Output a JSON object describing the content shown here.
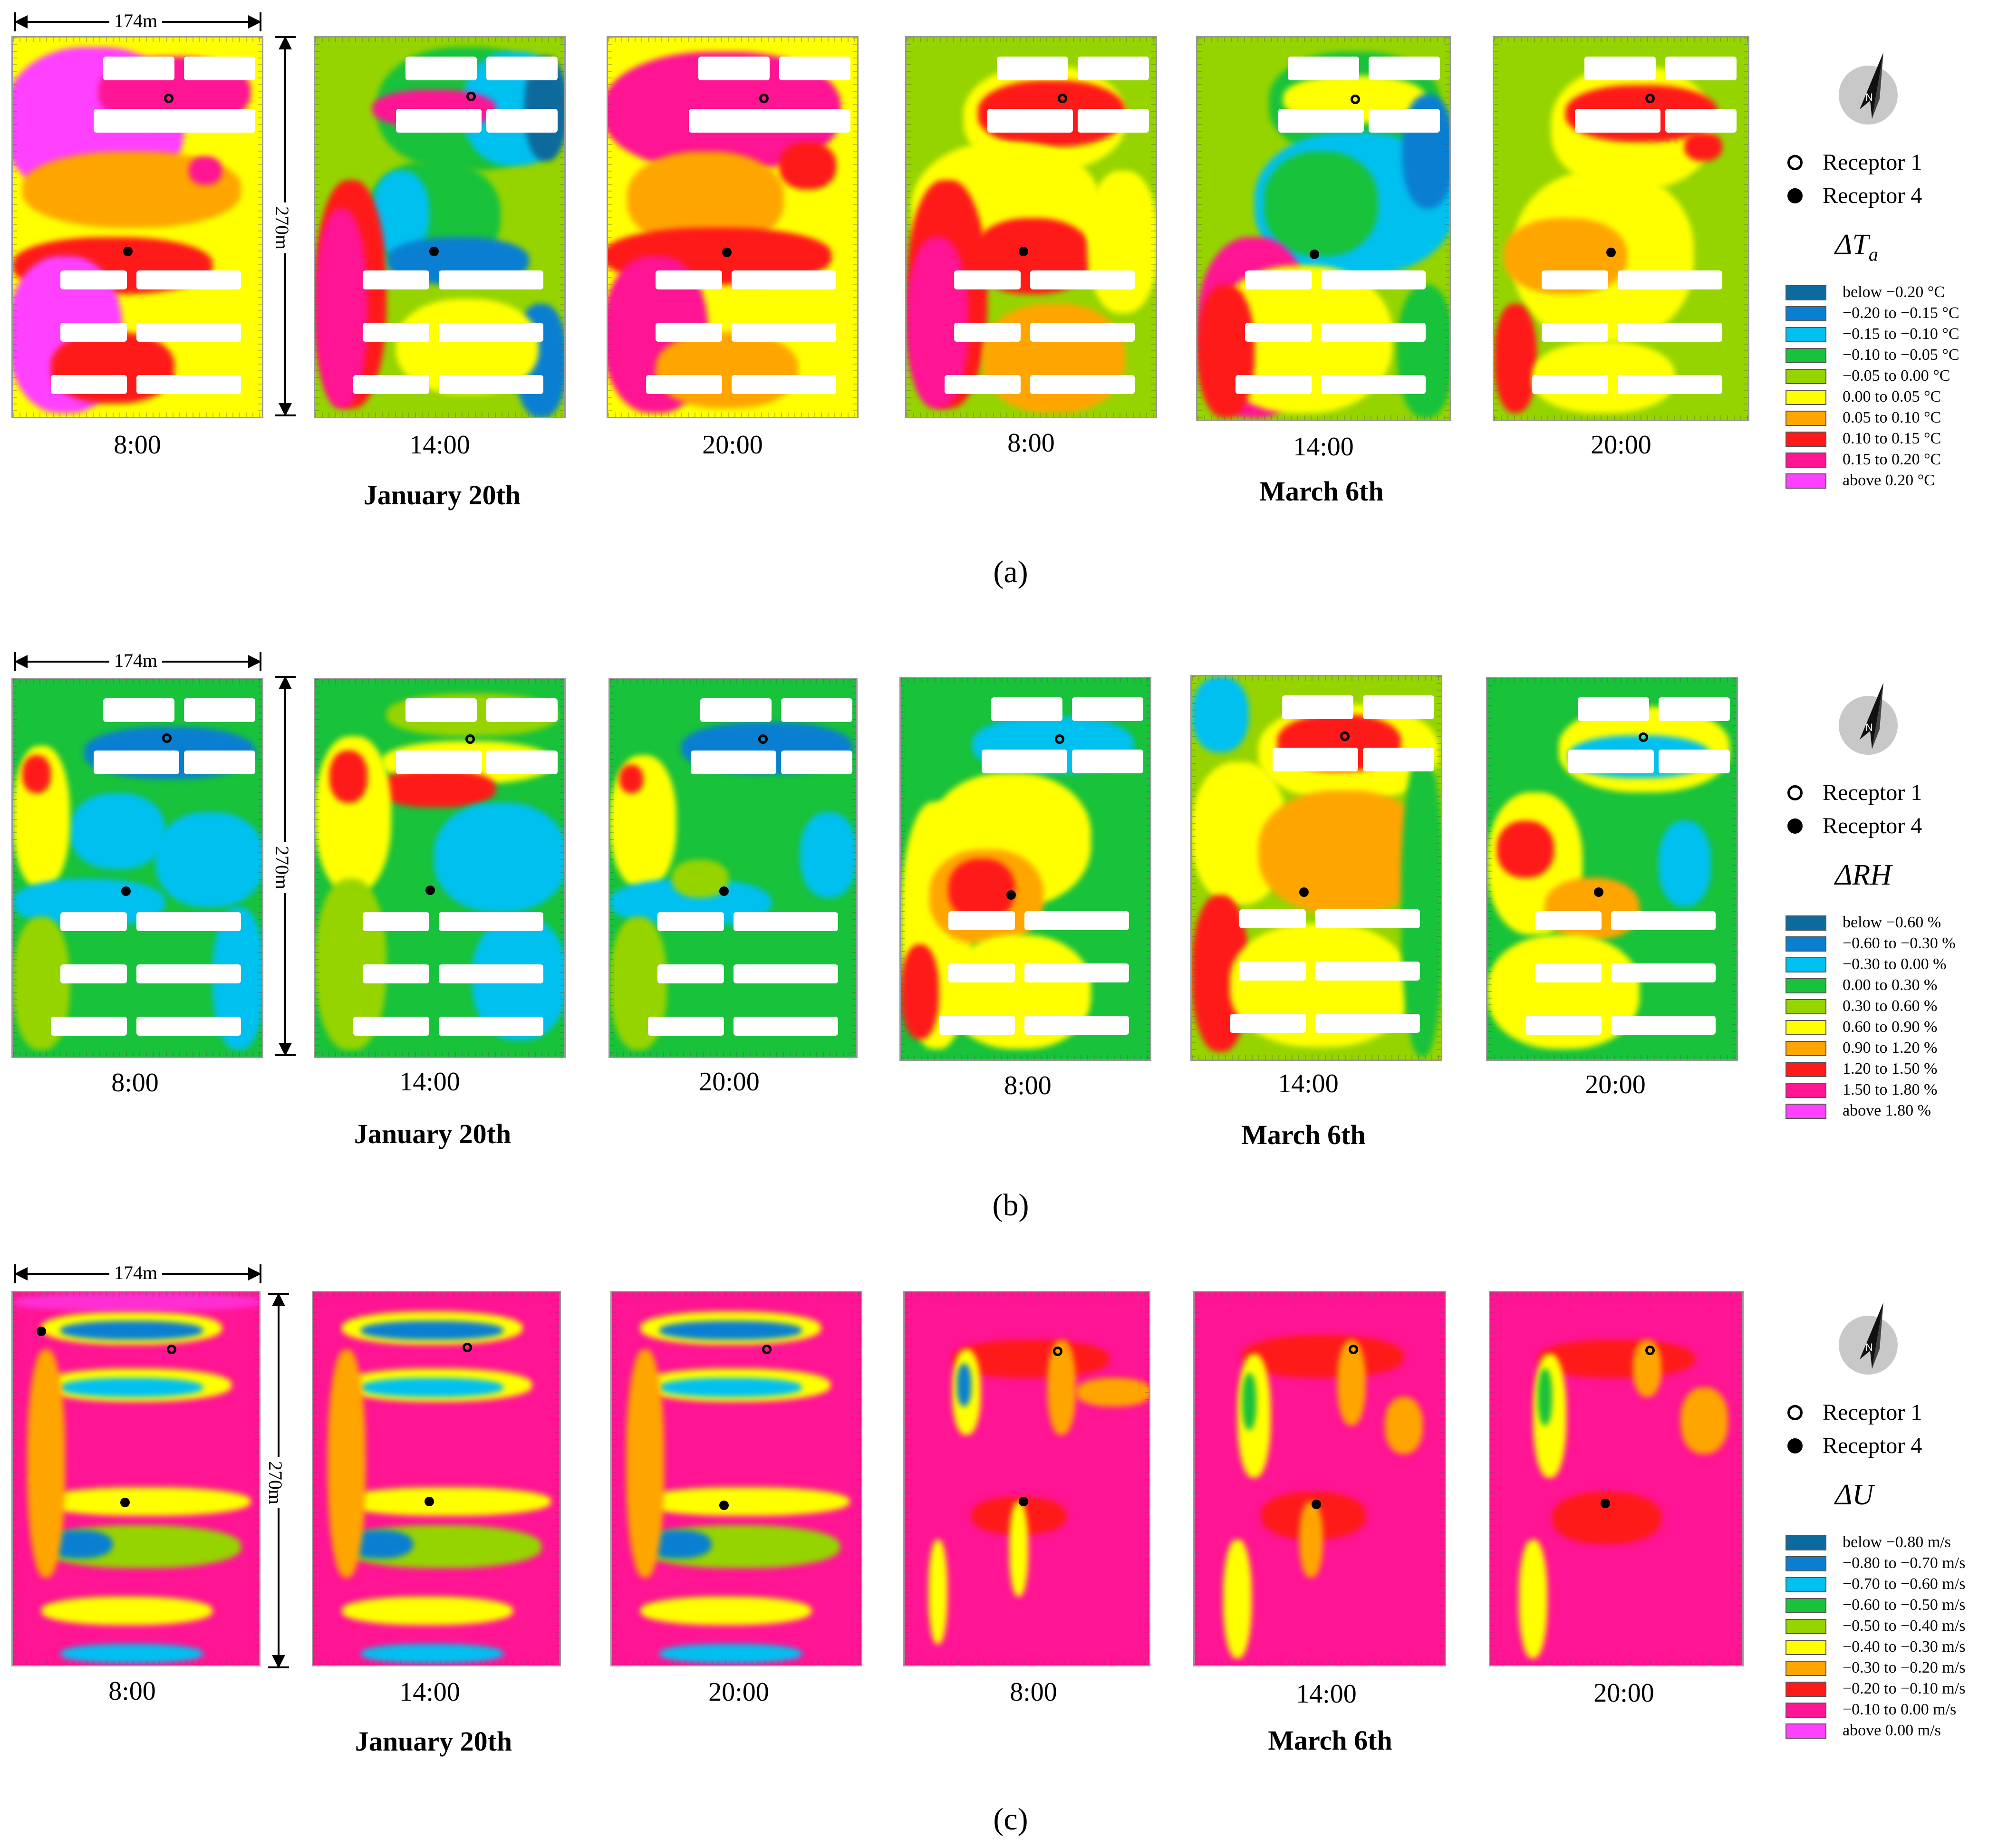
{
  "rows": [
    {
      "id": "a",
      "caption": "(a)",
      "dates": [
        "January 20th",
        "March 6th"
      ],
      "times": [
        "8:00",
        "14:00",
        "20:00",
        "8:00",
        "14:00",
        "20:00"
      ],
      "scale": {
        "width_label": "174m",
        "height_label": "270m"
      },
      "legend": {
        "title": "ΔT",
        "title_sub": "a",
        "receptors": [
          "Receptor 1",
          "Receptor 4"
        ],
        "items": [
          {
            "label": "below −0.20 °C",
            "color": "#0d6a9c"
          },
          {
            "label": "−0.20 to −0.15 °C",
            "color": "#0a7fd1"
          },
          {
            "label": "−0.15 to −0.10 °C",
            "color": "#00c0f0"
          },
          {
            "label": "−0.10 to −0.05 °C",
            "color": "#18c23a"
          },
          {
            "label": "−0.05 to 0.00 °C",
            "color": "#96d400"
          },
          {
            "label": "0.00 to 0.05 °C",
            "color": "#ffff00"
          },
          {
            "label": "0.05 to 0.10 °C",
            "color": "#ffa500"
          },
          {
            "label": "0.10 to 0.15 °C",
            "color": "#ff1a1a"
          },
          {
            "label": "0.15 to 0.20 °C",
            "color": "#ff1493"
          },
          {
            "label": "above 0.20 °C",
            "color": "#ff40ff"
          }
        ]
      }
    },
    {
      "id": "b",
      "caption": "(b)",
      "dates": [
        "January 20th",
        "March 6th"
      ],
      "times": [
        "8:00",
        "14:00",
        "20:00",
        "8:00",
        "14:00",
        "20:00"
      ],
      "scale": {
        "width_label": "174m",
        "height_label": "270m"
      },
      "legend": {
        "title": "ΔRH",
        "title_sub": "",
        "receptors": [
          "Receptor 1",
          "Receptor 4"
        ],
        "items": [
          {
            "label": "below −0.60 %",
            "color": "#0d6a9c"
          },
          {
            "label": "−0.60 to −0.30 %",
            "color": "#0a7fd1"
          },
          {
            "label": "−0.30 to 0.00 %",
            "color": "#00c0f0"
          },
          {
            "label": "0.00 to 0.30 %",
            "color": "#18c23a"
          },
          {
            "label": "0.30 to 0.60 %",
            "color": "#96d400"
          },
          {
            "label": "0.60 to 0.90 %",
            "color": "#ffff00"
          },
          {
            "label": "0.90 to 1.20 %",
            "color": "#ffa500"
          },
          {
            "label": "1.20 to 1.50 %",
            "color": "#ff1a1a"
          },
          {
            "label": "1.50 to 1.80 %",
            "color": "#ff1493"
          },
          {
            "label": "above 1.80 %",
            "color": "#ff40ff"
          }
        ]
      }
    },
    {
      "id": "c",
      "caption": "(c)",
      "dates": [
        "January 20th",
        "March 6th"
      ],
      "times": [
        "8:00",
        "14:00",
        "20:00",
        "8:00",
        "14:00",
        "20:00"
      ],
      "scale": {
        "width_label": "174m",
        "height_label": "270m"
      },
      "legend": {
        "title": "ΔU",
        "title_sub": "",
        "receptors": [
          "Receptor 1",
          "Receptor 4"
        ],
        "items": [
          {
            "label": "below −0.80 m/s",
            "color": "#0d6a9c"
          },
          {
            "label": "−0.80 to −0.70 m/s",
            "color": "#0a7fd1"
          },
          {
            "label": "−0.70 to −0.60 m/s",
            "color": "#00c0f0"
          },
          {
            "label": "−0.60 to −0.50 m/s",
            "color": "#18c23a"
          },
          {
            "label": "−0.50 to −0.40 m/s",
            "color": "#96d400"
          },
          {
            "label": "−0.40 to −0.30 m/s",
            "color": "#ffff00"
          },
          {
            "label": "−0.30 to −0.20 m/s",
            "color": "#ffa500"
          },
          {
            "label": "−0.20 to −0.10 m/s",
            "color": "#ff1a1a"
          },
          {
            "label": "−0.10 to 0.00 m/s",
            "color": "#ff1493"
          },
          {
            "label": "above 0.00 m/s",
            "color": "#ff40ff"
          }
        ]
      }
    }
  ],
  "compass_letter": "N"
}
